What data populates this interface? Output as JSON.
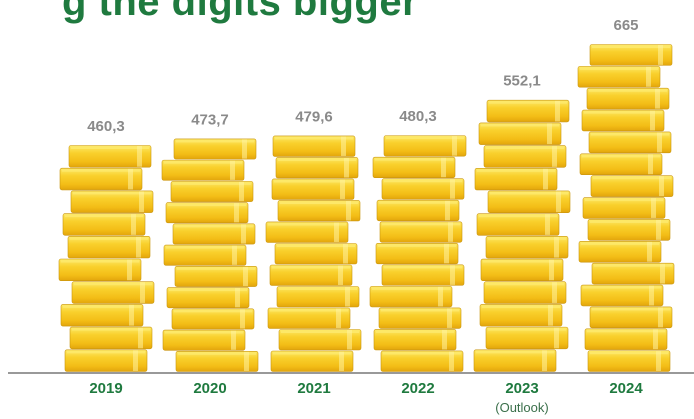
{
  "header": {
    "title": "g the digits bigger"
  },
  "chart_data": {
    "type": "bar",
    "title": "",
    "xlabel": "",
    "ylabel": "",
    "categories": [
      "2019",
      "2020",
      "2021",
      "2022",
      "2023",
      "2024"
    ],
    "category_notes": [
      "",
      "",
      "",
      "",
      "(Outlook)",
      ""
    ],
    "series": [
      {
        "values": [
          460.3,
          473.7,
          479.6,
          480.3,
          552.1,
          665
        ]
      }
    ],
    "value_labels": [
      "460,3",
      "473,7",
      "479,6",
      "480,3",
      "552,1",
      "665"
    ],
    "ylim": [
      0,
      665
    ],
    "grid": false,
    "legend": "none",
    "colors": {
      "coin_fill": "#f7c51e",
      "coin_highlight": "#fde96a",
      "coin_shadow": "#e2a50c",
      "coin_edge": "#c99510",
      "value_text": "#8a8a8a",
      "year_text": "#1f7a3f",
      "baseline": "#333333"
    }
  }
}
